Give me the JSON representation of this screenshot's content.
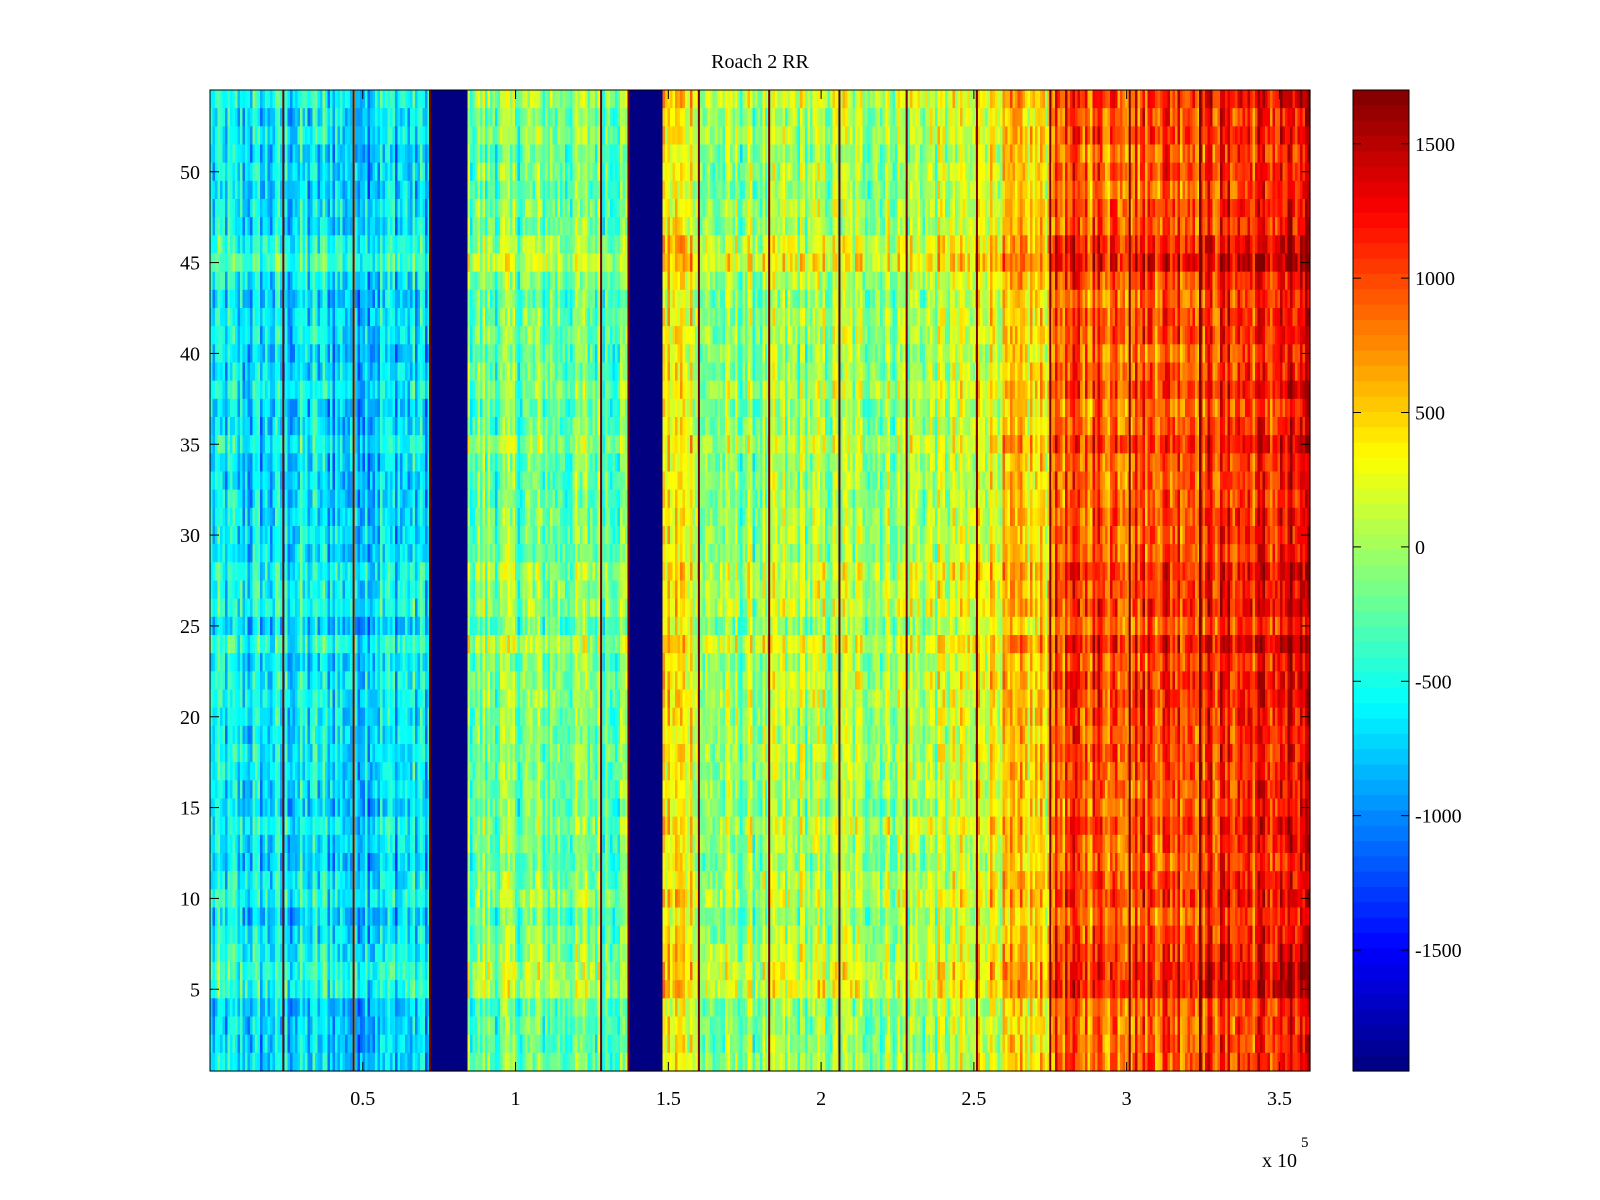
{
  "chart_data": {
    "type": "heatmap",
    "title": "Roach 2 RR",
    "xlabel": "",
    "ylabel": "",
    "x_range": [
      0,
      360000
    ],
    "y_range": [
      0.5,
      54.5
    ],
    "xticks": [
      50000,
      100000,
      150000,
      200000,
      250000,
      300000,
      350000
    ],
    "xtick_labels": [
      "0.5",
      "1",
      "1.5",
      "2",
      "2.5",
      "3",
      "3.5"
    ],
    "x_exponent_label": "x 10",
    "x_exponent_power": "5",
    "yticks": [
      5,
      10,
      15,
      20,
      25,
      30,
      35,
      40,
      45,
      50
    ],
    "ytick_labels": [
      "5",
      "10",
      "15",
      "20",
      "25",
      "30",
      "35",
      "40",
      "45",
      "50"
    ],
    "rows": 54,
    "colormap": "jet",
    "color_range": [
      -1950,
      1700
    ],
    "colorbar_ticks": [
      -1500,
      -1000,
      -500,
      0,
      500,
      1000,
      1500
    ],
    "colorbar_tick_labels": [
      "-1500",
      "-1000",
      "-500",
      "0",
      "500",
      "1000",
      "1500"
    ],
    "background_segments": [
      {
        "x_start": 0,
        "x_end": 72000,
        "value": -650
      },
      {
        "x_start": 72000,
        "x_end": 84000,
        "value": -1950
      },
      {
        "x_start": 84000,
        "x_end": 137000,
        "value": -150
      },
      {
        "x_start": 137000,
        "x_end": 148000,
        "value": -1950
      },
      {
        "x_start": 148000,
        "x_end": 160000,
        "value": 350
      },
      {
        "x_start": 160000,
        "x_end": 250000,
        "value": -100
      },
      {
        "x_start": 250000,
        "x_end": 275000,
        "value": 350
      },
      {
        "x_start": 275000,
        "x_end": 360000,
        "value": 850
      }
    ],
    "dark_vertical_lines_x": [
      24000,
      47000,
      72000,
      128000,
      137000,
      160000,
      183000,
      206000,
      228000,
      251000,
      275000,
      301000,
      324000
    ],
    "highlight_rows": [
      {
        "row": 45,
        "delta": 250
      },
      {
        "row": 46,
        "delta": 200
      },
      {
        "row": 6,
        "delta": 200
      },
      {
        "row": 5,
        "delta": 150
      },
      {
        "row": 24,
        "delta": 100
      },
      {
        "row": 28,
        "delta": 100
      }
    ]
  }
}
